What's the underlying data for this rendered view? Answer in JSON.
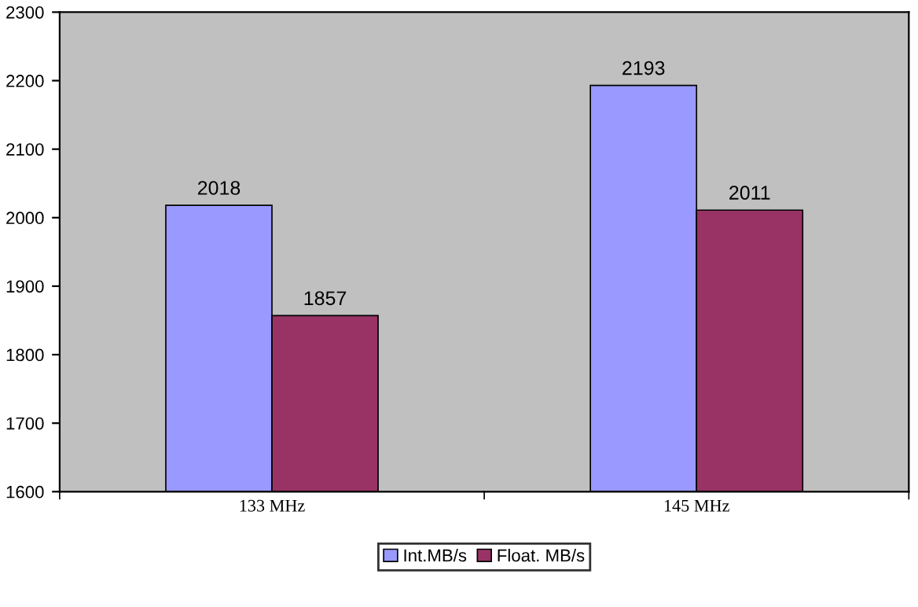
{
  "chart_data": {
    "type": "bar",
    "categories": [
      "133 MHz",
      "145 MHz"
    ],
    "series": [
      {
        "name": "Int.MB/s",
        "color": "#9999ff",
        "values": [
          2018,
          2193
        ]
      },
      {
        "name": "Float. MB/s",
        "color": "#993366",
        "values": [
          1857,
          2011
        ]
      }
    ],
    "ylim": [
      1600,
      2300
    ],
    "yticks": [
      1600,
      1700,
      1800,
      1900,
      2000,
      2100,
      2200,
      2300
    ],
    "data_labels": true,
    "legend": "bottom",
    "grid": false
  }
}
